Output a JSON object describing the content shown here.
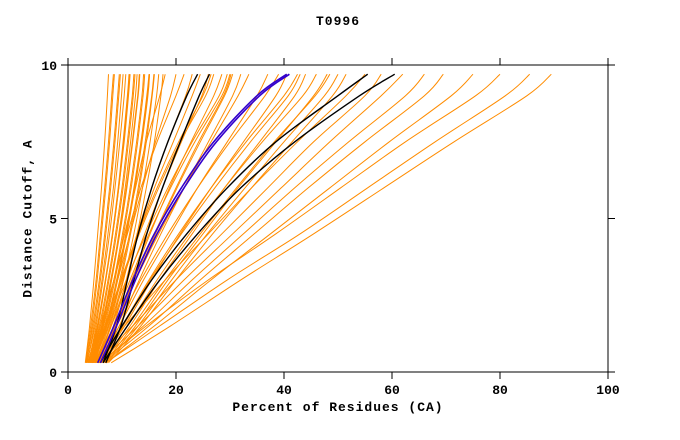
{
  "chart_data": {
    "type": "line",
    "title": "T0996",
    "xlabel": "Percent of Residues (CA)",
    "ylabel": "Distance Cutoff, A",
    "xlim": [
      0,
      100
    ],
    "ylim": [
      0,
      10
    ],
    "xticks": [
      0,
      20,
      40,
      60,
      80,
      100
    ],
    "yticks": [
      0,
      5,
      10
    ],
    "grid": "off",
    "legend": "none",
    "colors": {
      "orange": "#FF8C00",
      "black": "#000000",
      "blue": "#3300CC"
    },
    "y_grid": [
      0.3,
      1.5,
      3,
      4.5,
      6,
      7.5,
      9,
      9.7
    ],
    "series": [
      {
        "color": "orange",
        "x": [
          3.2,
          4.0,
          4.8,
          5.5,
          6.2,
          6.8,
          7.3,
          7.5
        ]
      },
      {
        "color": "orange",
        "x": [
          3.4,
          4.4,
          5.4,
          6.2,
          7.0,
          7.7,
          8.3,
          8.6
        ]
      },
      {
        "color": "orange",
        "x": [
          3.6,
          4.8,
          6.0,
          7.0,
          7.9,
          8.7,
          9.4,
          9.7
        ]
      },
      {
        "color": "orange",
        "x": [
          3.8,
          5.2,
          6.5,
          7.7,
          8.7,
          9.6,
          10.4,
          10.7
        ]
      },
      {
        "color": "orange",
        "x": [
          4.0,
          5.6,
          7.0,
          8.3,
          9.4,
          10.4,
          11.2,
          11.5
        ]
      },
      {
        "color": "orange",
        "x": [
          4.2,
          6.0,
          7.6,
          9.0,
          10.2,
          11.2,
          12.1,
          12.4
        ]
      },
      {
        "color": "orange",
        "x": [
          4.4,
          6.4,
          8.1,
          9.6,
          10.9,
          12.0,
          13.0,
          13.3
        ]
      },
      {
        "color": "orange",
        "x": [
          4.6,
          6.8,
          8.7,
          10.3,
          11.7,
          12.9,
          13.9,
          14.2
        ]
      },
      {
        "color": "orange",
        "x": [
          4.8,
          7.2,
          9.2,
          10.9,
          12.4,
          13.7,
          14.8,
          15.1
        ]
      },
      {
        "color": "orange",
        "x": [
          5.0,
          7.6,
          9.8,
          11.6,
          13.2,
          14.5,
          15.6,
          16.0
        ]
      },
      {
        "color": "orange",
        "x": [
          3.3,
          4.2,
          5.2,
          6.0,
          6.8,
          7.5,
          8.1,
          8.4
        ]
      },
      {
        "color": "orange",
        "x": [
          3.5,
          5.0,
          6.3,
          7.4,
          8.4,
          9.2,
          9.9,
          10.2
        ]
      },
      {
        "color": "orange",
        "x": [
          3.7,
          5.4,
          6.9,
          8.2,
          9.3,
          10.2,
          11.0,
          11.3
        ]
      },
      {
        "color": "orange",
        "x": [
          3.9,
          5.8,
          7.4,
          8.8,
          10.0,
          11.0,
          11.9,
          12.2
        ]
      },
      {
        "color": "orange",
        "x": [
          4.1,
          6.2,
          7.9,
          9.5,
          10.8,
          11.9,
          12.9,
          13.2
        ]
      },
      {
        "color": "orange",
        "x": [
          4.3,
          6.6,
          8.5,
          10.1,
          11.5,
          12.7,
          13.7,
          14.0
        ]
      },
      {
        "color": "orange",
        "x": [
          4.5,
          7.0,
          9.0,
          10.7,
          12.2,
          13.5,
          14.6,
          15.0
        ]
      },
      {
        "color": "orange",
        "x": [
          4.7,
          7.4,
          9.6,
          11.4,
          13.0,
          14.3,
          15.5,
          15.9
        ]
      },
      {
        "color": "orange",
        "x": [
          3.4,
          4.6,
          5.8,
          6.8,
          7.7,
          8.5,
          9.2,
          9.5
        ]
      },
      {
        "color": "orange",
        "x": [
          3.8,
          5.5,
          7.0,
          8.3,
          9.4,
          10.3,
          11.1,
          11.4
        ]
      },
      {
        "color": "orange",
        "x": [
          4.2,
          6.3,
          8.0,
          9.4,
          10.6,
          11.6,
          12.5,
          12.8
        ]
      },
      {
        "color": "orange",
        "x": [
          4.6,
          7.1,
          9.1,
          10.8,
          12.3,
          13.6,
          14.7,
          15.1
        ]
      },
      {
        "color": "orange",
        "x": [
          5.2,
          8.0,
          10.3,
          12.2,
          13.8,
          15.2,
          16.4,
          16.8
        ]
      },
      {
        "color": "orange",
        "x": [
          5.4,
          8.4,
          10.8,
          12.8,
          14.5,
          16.0,
          17.2,
          17.6
        ]
      },
      {
        "color": "orange",
        "x": [
          4.5,
          6.5,
          8.5,
          10.5,
          12.5,
          14.5,
          17.0,
          18.0
        ]
      },
      {
        "color": "orange",
        "x": [
          5.0,
          7.0,
          9.2,
          11.5,
          13.8,
          16.2,
          19.0,
          20.0
        ]
      },
      {
        "color": "orange",
        "x": [
          4.0,
          6.0,
          8.5,
          11.0,
          13.5,
          16.5,
          20.0,
          21.5
        ]
      },
      {
        "color": "orange",
        "x": [
          5.5,
          7.8,
          10.2,
          12.8,
          15.5,
          18.5,
          21.8,
          23.0
        ]
      },
      {
        "color": "orange",
        "x": [
          4.8,
          7.2,
          10.0,
          13.0,
          16.0,
          19.5,
          23.0,
          24.5
        ]
      },
      {
        "color": "orange",
        "x": [
          5.2,
          8.0,
          11.0,
          14.2,
          17.5,
          21.0,
          24.8,
          26.0
        ]
      },
      {
        "color": "orange",
        "x": [
          4.4,
          7.0,
          10.0,
          13.2,
          16.8,
          20.8,
          25.5,
          27.0
        ]
      },
      {
        "color": "orange",
        "x": [
          5.6,
          8.6,
          11.8,
          15.2,
          18.8,
          22.8,
          27.0,
          28.5
        ]
      },
      {
        "color": "orange",
        "x": [
          5.0,
          8.0,
          11.5,
          15.0,
          19.0,
          23.5,
          28.5,
          30.0
        ]
      },
      {
        "color": "orange",
        "x": [
          4.2,
          6.8,
          9.8,
          13.0,
          16.5,
          20.5,
          25.0,
          26.5
        ]
      },
      {
        "color": "orange",
        "x": [
          5.8,
          9.0,
          12.5,
          16.2,
          20.2,
          24.5,
          29.0,
          30.5
        ]
      },
      {
        "color": "orange",
        "x": [
          4.6,
          7.5,
          10.8,
          14.5,
          18.5,
          23.0,
          28.0,
          29.5
        ]
      },
      {
        "color": "orange",
        "x": [
          6.0,
          9.5,
          13.2,
          17.2,
          21.5,
          26.0,
          30.5,
          32.0
        ]
      },
      {
        "color": "orange",
        "x": [
          5.4,
          8.8,
          12.2,
          16.0,
          20.0,
          24.2,
          28.8,
          30.2
        ]
      },
      {
        "color": "orange",
        "x": [
          5.0,
          8.5,
          12.5,
          16.8,
          21.5,
          26.5,
          31.5,
          33.5
        ]
      },
      {
        "color": "orange",
        "x": [
          5.5,
          9.5,
          14.0,
          19.0,
          24.0,
          29.5,
          35.0,
          37.0
        ]
      },
      {
        "color": "orange",
        "x": [
          6.0,
          10.5,
          15.5,
          20.8,
          26.5,
          32.5,
          38.5,
          40.5
        ]
      },
      {
        "color": "orange",
        "x": [
          5.2,
          9.0,
          13.5,
          18.5,
          24.0,
          30.0,
          36.5,
          39.0
        ]
      },
      {
        "color": "orange",
        "x": [
          6.5,
          11.5,
          17.0,
          23.0,
          29.0,
          35.5,
          42.0,
          44.0
        ]
      },
      {
        "color": "orange",
        "x": [
          5.8,
          10.2,
          15.2,
          21.0,
          27.2,
          33.8,
          40.8,
          43.0
        ]
      },
      {
        "color": "orange",
        "x": [
          7.0,
          12.5,
          18.5,
          25.0,
          31.5,
          38.5,
          45.5,
          48.0
        ]
      },
      {
        "color": "orange",
        "x": [
          6.2,
          11.0,
          16.5,
          22.5,
          29.0,
          36.0,
          43.5,
          46.0
        ]
      },
      {
        "color": "orange",
        "x": [
          7.5,
          13.5,
          20.0,
          26.8,
          34.0,
          41.5,
          49.0,
          51.5
        ]
      },
      {
        "color": "orange",
        "x": [
          6.8,
          12.0,
          18.0,
          24.5,
          31.2,
          38.2,
          45.8,
          48.5
        ]
      },
      {
        "color": "orange",
        "x": [
          5.6,
          10.0,
          15.0,
          20.5,
          26.5,
          33.0,
          40.0,
          42.5
        ]
      },
      {
        "color": "orange",
        "x": [
          7.2,
          13.0,
          19.2,
          25.8,
          32.8,
          40.0,
          47.5,
          50.0
        ]
      },
      {
        "color": "orange",
        "x": [
          4.5,
          10.5,
          18.0,
          26.0,
          34.0,
          42.5,
          51.5,
          55.0
        ]
      },
      {
        "color": "orange",
        "x": [
          5.0,
          12.0,
          20.0,
          28.5,
          37.0,
          45.5,
          55.0,
          58.0
        ]
      },
      {
        "color": "orange",
        "x": [
          5.5,
          13.0,
          21.5,
          30.5,
          39.5,
          48.5,
          58.0,
          62.0
        ]
      },
      {
        "color": "orange",
        "x": [
          6.0,
          14.0,
          23.0,
          32.5,
          42.0,
          52.0,
          62.5,
          66.0
        ]
      },
      {
        "color": "orange",
        "x": [
          6.5,
          15.0,
          24.5,
          34.5,
          44.5,
          55.0,
          66.0,
          69.5
        ]
      },
      {
        "color": "orange",
        "x": [
          7.0,
          16.0,
          26.5,
          37.5,
          48.5,
          59.5,
          71.0,
          75.0
        ]
      },
      {
        "color": "orange",
        "x": [
          6.0,
          14.5,
          26.0,
          38.5,
          50.5,
          62.5,
          75.5,
          80.0
        ]
      },
      {
        "color": "orange",
        "x": [
          7.0,
          17.0,
          29.5,
          43.0,
          55.5,
          68.0,
          81.0,
          85.5
        ]
      },
      {
        "color": "orange",
        "x": [
          8.0,
          19.0,
          32.0,
          45.5,
          58.5,
          71.5,
          85.0,
          89.5
        ]
      },
      {
        "color": "black",
        "x": [
          6.5,
          9.0,
          11.0,
          13.0,
          15.5,
          18.5,
          22.0,
          24.0
        ]
      },
      {
        "color": "black",
        "x": [
          7.0,
          9.8,
          12.2,
          14.6,
          17.5,
          20.8,
          24.3,
          26.2
        ]
      },
      {
        "color": "black",
        "x": [
          6.0,
          10.0,
          15.5,
          22.0,
          29.5,
          38.5,
          50.0,
          55.5
        ]
      },
      {
        "color": "black",
        "x": [
          6.5,
          11.0,
          17.0,
          24.0,
          32.0,
          42.0,
          54.0,
          60.5
        ]
      },
      {
        "color": "blue",
        "x": [
          5.5,
          8.5,
          12.0,
          16.0,
          21.0,
          27.0,
          35.0,
          40.5
        ]
      },
      {
        "color": "blue",
        "x": [
          6.0,
          9.0,
          12.5,
          16.5,
          21.5,
          27.5,
          35.5,
          41.0
        ]
      }
    ]
  }
}
